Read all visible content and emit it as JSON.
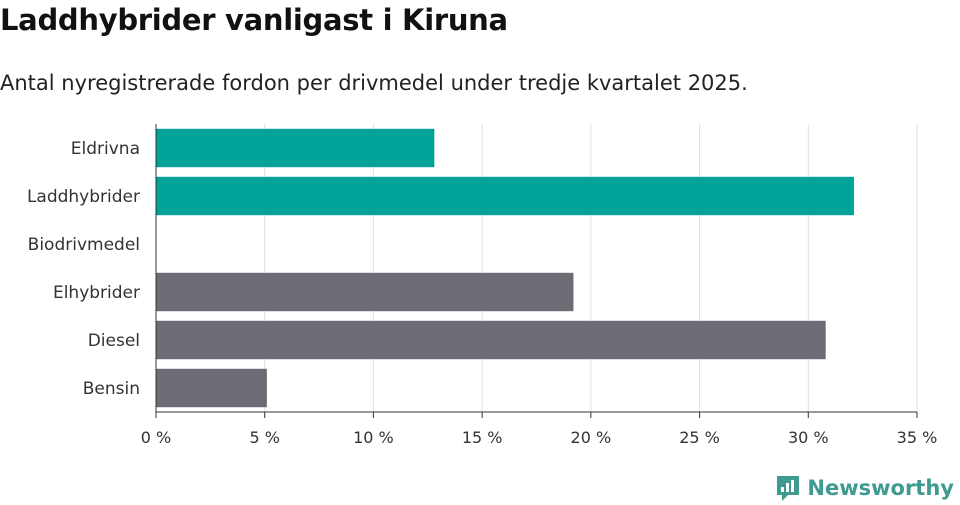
{
  "header": {
    "title": "Laddhybrider vanligast i Kiruna",
    "subtitle": "Antal nyregistrerade fordon per drivmedel under tredje kvartalet 2025."
  },
  "brand": {
    "name": "Newsworthy",
    "icon": "newsworthy-logo-icon",
    "color": "#3f9a8f"
  },
  "chart_data": {
    "type": "bar",
    "orientation": "horizontal",
    "title": "Laddhybrider vanligast i Kiruna",
    "subtitle": "Antal nyregistrerade fordon per drivmedel under tredje kvartalet 2025.",
    "categories": [
      "Eldrivna",
      "Laddhybrider",
      "Biodrivmedel",
      "Elhybrider",
      "Diesel",
      "Bensin"
    ],
    "values": [
      12.8,
      32.1,
      0,
      19.2,
      30.8,
      5.1
    ],
    "colors": [
      "#00a39a",
      "#00a39a",
      "#00a39a",
      "#6d6c74",
      "#6d6c74",
      "#6d6c74"
    ],
    "xlim": [
      0,
      35
    ],
    "xticks": [
      0,
      5,
      10,
      15,
      20,
      25,
      30,
      35
    ],
    "xtick_labels": [
      "0 %",
      "5 %",
      "10 %",
      "15 %",
      "20 %",
      "25 %",
      "30 %",
      "35 %"
    ],
    "xlabel": "",
    "ylabel": "",
    "grid": true
  }
}
